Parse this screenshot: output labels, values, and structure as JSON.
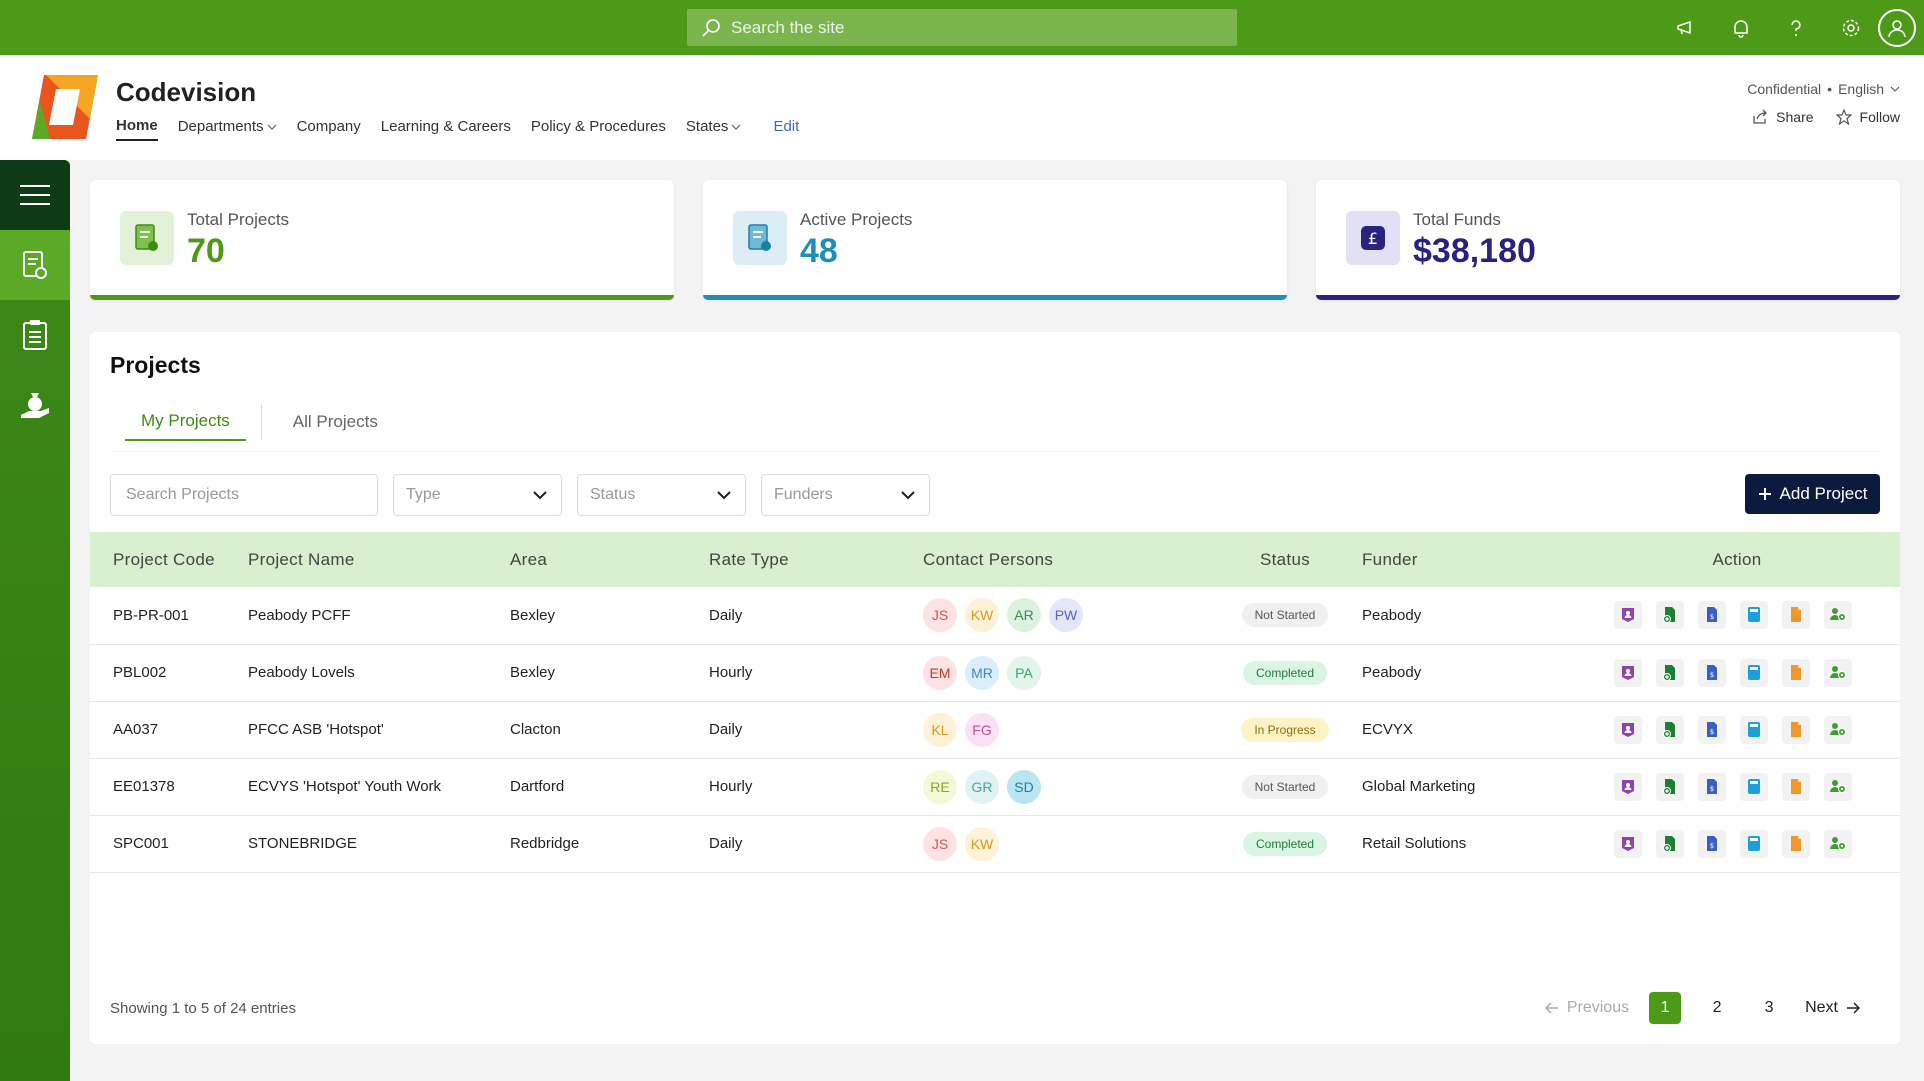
{
  "suitebar": {
    "search_placeholder": "Search the site",
    "icons": [
      "megaphone-icon",
      "bell-icon",
      "help-icon",
      "settings-icon",
      "user-icon"
    ]
  },
  "site": {
    "title": "Codevision",
    "nav": [
      {
        "label": "Home",
        "active": true,
        "dropdown": false
      },
      {
        "label": "Departments",
        "dropdown": true
      },
      {
        "label": "Company",
        "dropdown": false
      },
      {
        "label": "Learning & Careers",
        "dropdown": false
      },
      {
        "label": "Policy & Procedures",
        "dropdown": false
      },
      {
        "label": "States",
        "dropdown": true
      }
    ],
    "edit_label": "Edit",
    "classification": "Confidential",
    "separator": "•",
    "language": "English",
    "share_label": "Share",
    "follow_label": "Follow"
  },
  "cards": [
    {
      "label": "Total Projects",
      "value": "70",
      "color": "#4c9a17",
      "bg": "#e3f1d8"
    },
    {
      "label": "Active Projects",
      "value": "48",
      "color": "#1e90b8",
      "bg": "#dcedf6"
    },
    {
      "label": "Total Funds",
      "value": "$38,180",
      "color": "#2a237d",
      "bg": "#e2e0f4"
    }
  ],
  "projects": {
    "title": "Projects",
    "tabs": [
      "My Projects",
      "All Projects"
    ],
    "search_placeholder": "Search Projects",
    "filters": [
      "Type",
      "Status",
      "Funders"
    ],
    "add_label": "Add Project",
    "columns": [
      "Project Code",
      "Project Name",
      "Area",
      "Rate Type",
      "Contact Persons",
      "Status",
      "Funder",
      "Action"
    ],
    "rows": [
      {
        "code": "PB-PR-001",
        "name": "Peabody PCFF",
        "area": "Bexley",
        "rate": "Daily",
        "contacts": [
          "JS",
          "KW",
          "AR",
          "PW"
        ],
        "status": "Not Started",
        "funder": "Peabody"
      },
      {
        "code": "PBL002",
        "name": "Peabody Lovels",
        "area": "Bexley",
        "rate": "Hourly",
        "contacts": [
          "EM",
          "MR",
          "PA"
        ],
        "status": "Completed",
        "funder": "Peabody"
      },
      {
        "code": "AA037",
        "name": "PFCC ASB 'Hotspot'",
        "area": "Clacton",
        "rate": "Daily",
        "contacts": [
          "KL",
          "FG"
        ],
        "status": "In Progress",
        "funder": "ECVYX"
      },
      {
        "code": "EE01378",
        "name": "ECVYS 'Hotspot' Youth Work",
        "area": "Dartford",
        "rate": "Hourly",
        "contacts": [
          "RE",
          "GR",
          "SD"
        ],
        "status": "Not Started",
        "funder": "Global Marketing"
      },
      {
        "code": "SPC001",
        "name": "STONEBRIDGE",
        "area": "Redbridge",
        "rate": "Daily",
        "contacts": [
          "JS",
          "KW"
        ],
        "status": "Completed",
        "funder": "Retail Solutions"
      }
    ],
    "showing": "Showing 1 to 5 of 24 entries",
    "pagination": {
      "previous": "Previous",
      "pages": [
        "1",
        "2",
        "3"
      ],
      "current": "1",
      "next": "Next"
    }
  },
  "colors": {
    "brand_green": "#4c9a17",
    "dark_navy": "#0b1a3d",
    "header_row": "#d8f0cd"
  }
}
